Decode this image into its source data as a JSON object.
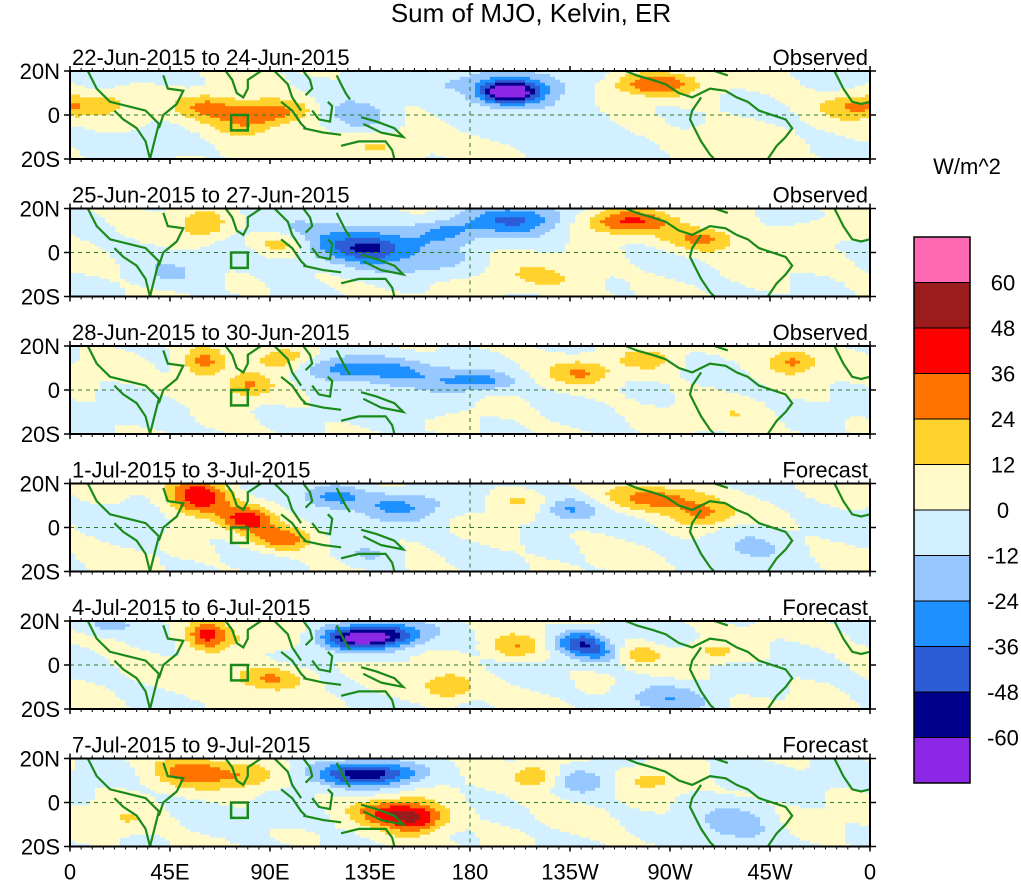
{
  "chart_data": {
    "type": "heatmap",
    "title": "Sum of MJO, Kelvin, ER",
    "colorbar_label": "W/m^2",
    "x_tick_labels": [
      "0",
      "45E",
      "90E",
      "135E",
      "180",
      "135W",
      "90W",
      "45W",
      "0"
    ],
    "x_ticks_deg": [
      0,
      45,
      90,
      135,
      180,
      225,
      270,
      315,
      360
    ],
    "y_tick_labels": [
      "20N",
      "0",
      "20S"
    ],
    "y_ticks_deg": [
      20,
      0,
      -20
    ],
    "xlim": [
      0,
      360
    ],
    "ylim": [
      -20,
      20
    ],
    "levels": [
      -60,
      -48,
      -36,
      -24,
      -12,
      0,
      12,
      24,
      36,
      48,
      60
    ],
    "colorbar_tick_labels": [
      "60",
      "48",
      "36",
      "24",
      "12",
      "0",
      "-12",
      "-24",
      "-36",
      "-48",
      "-60"
    ],
    "colors": [
      "#8c28e6",
      "#00008c",
      "#2d5cd7",
      "#1e90ff",
      "#96c8ff",
      "#d2f0ff",
      "#fffac8",
      "#ffd22d",
      "#ff7300",
      "#ff0000",
      "#9b1c1c",
      "#ff69b4"
    ],
    "panels": [
      {
        "date_range": "22-Jun-2015 to 24-Jun-2015",
        "kind": "Observed",
        "blobs": [
          [
            197,
            10,
            9,
            3.5,
            -62
          ],
          [
            202,
            14,
            18,
            6,
            -25
          ],
          [
            130,
            0,
            12,
            6,
            -22
          ],
          [
            230,
            -5,
            15,
            8,
            -8
          ],
          [
            62,
            4,
            10,
            4,
            26
          ],
          [
            80,
            -2,
            12,
            5,
            28
          ],
          [
            95,
            2,
            12,
            4,
            20
          ],
          [
            140,
            -14,
            14,
            5,
            15
          ],
          [
            262,
            14,
            14,
            4,
            36
          ],
          [
            355,
            4,
            12,
            4,
            26
          ],
          [
            20,
            6,
            8,
            4,
            12
          ],
          [
            110,
            -15,
            10,
            4,
            10
          ],
          [
            300,
            -10,
            15,
            5,
            10
          ],
          [
            35,
            -12,
            10,
            4,
            -10
          ],
          [
            170,
            15,
            10,
            4,
            -10
          ]
        ]
      },
      {
        "date_range": "25-Jun-2015 to 27-Jun-2015",
        "kind": "Observed",
        "blobs": [
          [
            125,
            4,
            30,
            7,
            -28
          ],
          [
            170,
            10,
            10,
            4,
            -22
          ],
          [
            200,
            15,
            15,
            5,
            -35
          ],
          [
            135,
            2,
            10,
            4,
            -28
          ],
          [
            95,
            4,
            10,
            4,
            30
          ],
          [
            60,
            12,
            8,
            5,
            22
          ],
          [
            250,
            14,
            14,
            4,
            36
          ],
          [
            285,
            6,
            12,
            4,
            26
          ],
          [
            340,
            10,
            10,
            3,
            15
          ],
          [
            210,
            -12,
            18,
            5,
            12
          ],
          [
            45,
            -10,
            12,
            5,
            -10
          ],
          [
            160,
            -5,
            15,
            5,
            -10
          ]
        ]
      },
      {
        "date_range": "28-Jun-2015 to 30-Jun-2015",
        "kind": "Observed",
        "blobs": [
          [
            120,
            10,
            12,
            4,
            -28
          ],
          [
            145,
            8,
            15,
            5,
            -25
          ],
          [
            175,
            4,
            10,
            4,
            -20
          ],
          [
            60,
            12,
            7,
            5,
            30
          ],
          [
            80,
            2,
            8,
            4,
            26
          ],
          [
            95,
            14,
            10,
            4,
            22
          ],
          [
            230,
            8,
            10,
            4,
            22
          ],
          [
            260,
            14,
            10,
            4,
            18
          ],
          [
            325,
            13,
            8,
            4,
            26
          ],
          [
            190,
            4,
            8,
            3,
            -18
          ],
          [
            155,
            -8,
            10,
            4,
            -15
          ],
          [
            40,
            -10,
            10,
            4,
            -10
          ],
          [
            300,
            -12,
            12,
            5,
            8
          ]
        ]
      },
      {
        "date_range": "1-Jul-2015 to 3-Jul-2015",
        "kind": "Forecast",
        "blobs": [
          [
            58,
            14,
            10,
            6,
            45
          ],
          [
            80,
            4,
            8,
            4,
            40
          ],
          [
            95,
            -5,
            10,
            4,
            30
          ],
          [
            118,
            14,
            10,
            4,
            -28
          ],
          [
            150,
            10,
            15,
            5,
            -25
          ],
          [
            225,
            8,
            8,
            4,
            -25
          ],
          [
            265,
            13,
            16,
            4,
            30
          ],
          [
            285,
            6,
            10,
            4,
            25
          ],
          [
            305,
            -8,
            15,
            7,
            -12
          ],
          [
            200,
            12,
            8,
            3,
            12
          ],
          [
            135,
            -12,
            10,
            4,
            -15
          ],
          [
            30,
            4,
            8,
            5,
            -10
          ]
        ]
      },
      {
        "date_range": "4-Jul-2015 to 6-Jul-2015",
        "kind": "Forecast",
        "blobs": [
          [
            62,
            14,
            7,
            5,
            40
          ],
          [
            85,
            12,
            10,
            4,
            12
          ],
          [
            128,
            12,
            12,
            4,
            -55
          ],
          [
            145,
            14,
            12,
            4,
            -36
          ],
          [
            230,
            10,
            8,
            4,
            -45
          ],
          [
            240,
            5,
            8,
            3,
            -20
          ],
          [
            200,
            8,
            8,
            4,
            22
          ],
          [
            255,
            5,
            8,
            3,
            18
          ],
          [
            290,
            6,
            8,
            3,
            16
          ],
          [
            170,
            -10,
            8,
            4,
            26
          ],
          [
            90,
            -6,
            12,
            4,
            26
          ],
          [
            270,
            -15,
            14,
            5,
            -20
          ],
          [
            15,
            18,
            10,
            3,
            -15
          ]
        ]
      },
      {
        "date_range": "7-Jul-2015 to 9-Jul-2015",
        "kind": "Forecast",
        "blobs": [
          [
            55,
            14,
            12,
            5,
            30
          ],
          [
            80,
            12,
            10,
            4,
            20
          ],
          [
            135,
            13,
            16,
            4,
            -55
          ],
          [
            155,
            -7,
            10,
            5,
            50
          ],
          [
            140,
            -4,
            10,
            4,
            26
          ],
          [
            210,
            12,
            8,
            4,
            24
          ],
          [
            230,
            10,
            8,
            4,
            -20
          ],
          [
            262,
            10,
            10,
            4,
            15
          ],
          [
            300,
            12,
            10,
            4,
            -12
          ],
          [
            300,
            -10,
            12,
            6,
            -18
          ],
          [
            25,
            -8,
            10,
            4,
            12
          ],
          [
            100,
            -6,
            12,
            4,
            -10
          ]
        ]
      }
    ]
  }
}
